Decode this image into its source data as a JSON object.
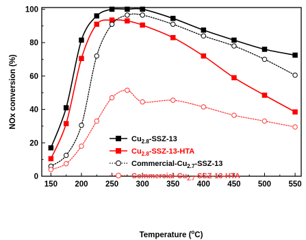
{
  "chart_data": {
    "type": "line",
    "xlabel": "Temperature (°C)",
    "ylabel": "NOx conversion (%)",
    "xlim": [
      135,
      560
    ],
    "ylim": [
      0,
      101
    ],
    "x_ticks": [
      150,
      200,
      250,
      300,
      350,
      400,
      450,
      500,
      550
    ],
    "y_ticks": [
      0,
      20,
      40,
      60,
      80,
      100
    ],
    "grid": false,
    "legend_position": "bottom-center",
    "series": [
      {
        "name": "Cu2.8-SSZ-13",
        "legend_label": {
          "pre": "Cu",
          "sub": "2.8",
          "post": "-SSZ-13"
        },
        "color": "#000000",
        "marker": "square",
        "filled": true,
        "line_style": "solid",
        "x": [
          150,
          175,
          200,
          225,
          250,
          275,
          300,
          350,
          400,
          450,
          500,
          550
        ],
        "y": [
          17,
          41,
          81.5,
          96,
          100,
          100,
          100,
          94.5,
          87.5,
          81.5,
          76,
          72.5
        ]
      },
      {
        "name": "Cu2.8-SSZ-13-HTA",
        "legend_label": {
          "pre": "Cu",
          "sub": "2.8",
          "post": "-SSZ-13-HTA"
        },
        "color": "#ff0000",
        "marker": "square",
        "filled": true,
        "line_style": "solid",
        "x": [
          150,
          175,
          200,
          225,
          250,
          275,
          300,
          350,
          400,
          450,
          500,
          550
        ],
        "y": [
          10.5,
          31.5,
          70.5,
          91,
          93.5,
          93,
          90.5,
          83,
          72,
          59,
          48.5,
          38.5
        ]
      },
      {
        "name": "Commercial-Cu2.7-SSZ-13",
        "legend_label": {
          "pre": "Commercial-Cu",
          "sub": "2.7",
          "post": "-SSZ-13"
        },
        "color": "#000000",
        "marker": "circle",
        "filled": false,
        "line_style": "dotted",
        "x": [
          150,
          175,
          200,
          225,
          250,
          275,
          300,
          350,
          400,
          450,
          500,
          550
        ],
        "y": [
          6,
          12.5,
          30.5,
          72,
          91,
          96.5,
          96.5,
          91,
          84,
          78,
          70,
          60.5
        ]
      },
      {
        "name": "Commercial-Cu2.7-SSZ-13-HTA",
        "legend_label": {
          "pre": "Commercial-Cu",
          "sub": "2.7",
          "post": "-SSZ-13-HTA"
        },
        "color": "#ff3333",
        "marker": "circle",
        "filled": false,
        "line_style": "dotted",
        "x": [
          150,
          175,
          200,
          225,
          250,
          275,
          300,
          350,
          400,
          450,
          500,
          550
        ],
        "y": [
          4,
          7.5,
          18,
          33,
          47,
          51.5,
          44.5,
          45.5,
          41.5,
          36.5,
          33,
          29.5
        ]
      }
    ]
  }
}
